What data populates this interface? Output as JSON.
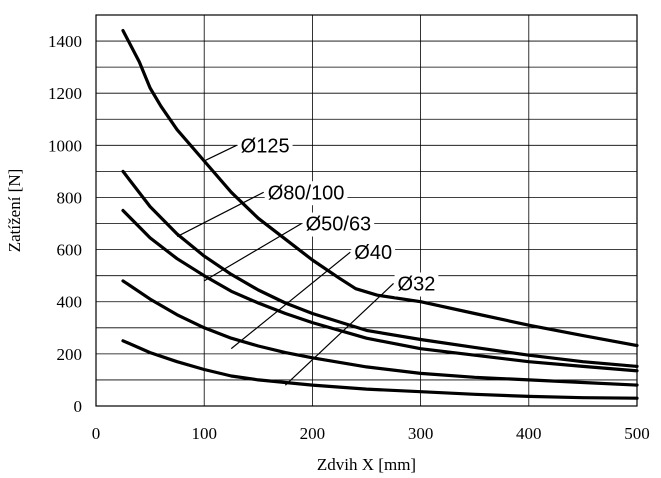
{
  "chart_data": {
    "type": "line",
    "title": "",
    "xlabel": "Zdvih X [mm]",
    "ylabel": "Zatížení [N]",
    "xlim": [
      0,
      500
    ],
    "ylim": [
      0,
      1500
    ],
    "x_ticks": [
      0,
      100,
      200,
      300,
      400,
      500
    ],
    "y_ticks": [
      0,
      200,
      400,
      600,
      800,
      1000,
      1200,
      1400
    ],
    "y_gridlines": [
      100,
      200,
      300,
      400,
      500,
      600,
      700,
      800,
      900,
      1000,
      1100,
      1200,
      1300,
      1400
    ],
    "grid": true,
    "series": [
      {
        "name": "Ø125",
        "x": [
          25,
          40,
          50,
          60,
          75,
          100,
          125,
          150,
          175,
          200,
          225,
          240,
          260,
          300,
          350,
          400,
          450,
          500
        ],
        "values": [
          1440,
          1320,
          1220,
          1150,
          1060,
          940,
          820,
          720,
          640,
          560,
          490,
          450,
          425,
          400,
          355,
          310,
          270,
          232
        ]
      },
      {
        "name": "Ø80/100",
        "x": [
          25,
          50,
          75,
          100,
          125,
          150,
          175,
          200,
          250,
          300,
          350,
          400,
          450,
          500
        ],
        "values": [
          900,
          765,
          660,
          575,
          505,
          445,
          395,
          355,
          290,
          255,
          225,
          195,
          170,
          152
        ]
      },
      {
        "name": "Ø50/63",
        "x": [
          25,
          50,
          75,
          100,
          125,
          150,
          175,
          200,
          250,
          300,
          350,
          400,
          450,
          500
        ],
        "values": [
          750,
          645,
          565,
          500,
          440,
          395,
          355,
          320,
          260,
          220,
          195,
          170,
          152,
          135
        ]
      },
      {
        "name": "Ø40",
        "x": [
          25,
          50,
          75,
          100,
          125,
          150,
          175,
          200,
          250,
          300,
          350,
          400,
          450,
          500
        ],
        "values": [
          480,
          410,
          350,
          300,
          260,
          230,
          205,
          185,
          150,
          125,
          110,
          100,
          90,
          80
        ]
      },
      {
        "name": "Ø32",
        "x": [
          25,
          50,
          75,
          100,
          125,
          150,
          175,
          200,
          250,
          300,
          350,
          400,
          450,
          500
        ],
        "values": [
          250,
          205,
          170,
          140,
          115,
          100,
          90,
          80,
          65,
          55,
          45,
          37,
          32,
          30
        ]
      }
    ],
    "annotations": [
      {
        "series": "Ø125",
        "text": "Ø125",
        "point": [
          100,
          940
        ],
        "label_at": [
          130,
          1000
        ]
      },
      {
        "series": "Ø80/100",
        "text": "Ø80/100",
        "point": [
          75,
          650
        ],
        "label_at": [
          155,
          820
        ]
      },
      {
        "series": "Ø50/63",
        "text": "Ø50/63",
        "point": [
          100,
          480
        ],
        "label_at": [
          190,
          700
        ]
      },
      {
        "series": "Ø40",
        "text": "Ø40",
        "point": [
          125,
          220
        ],
        "label_at": [
          235,
          590
        ]
      },
      {
        "series": "Ø32",
        "text": "Ø32",
        "point": [
          175,
          80
        ],
        "label_at": [
          275,
          470
        ]
      }
    ]
  }
}
